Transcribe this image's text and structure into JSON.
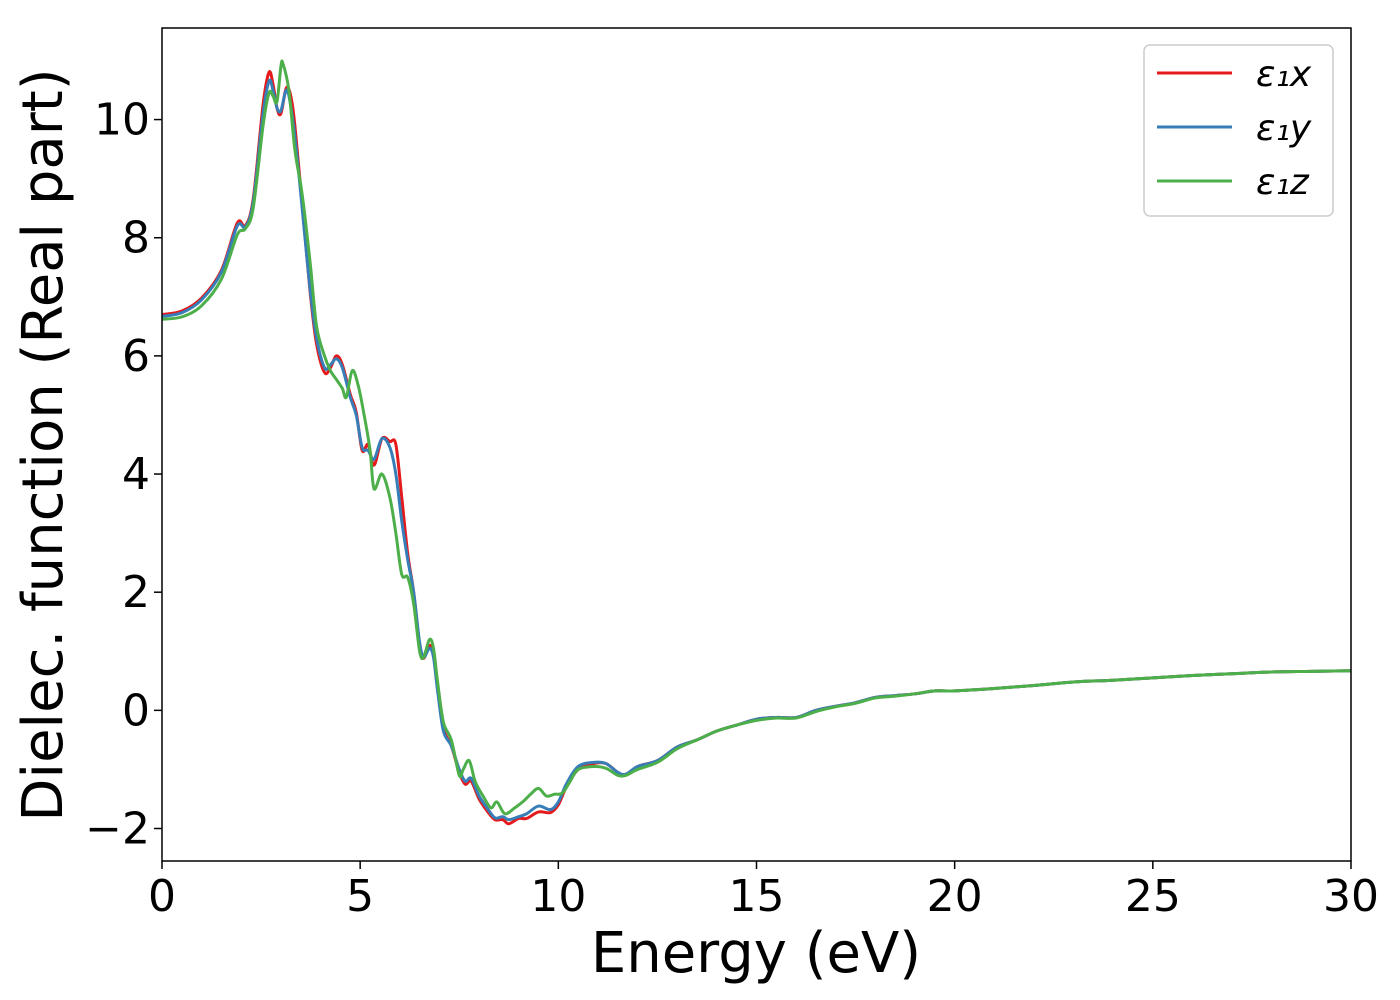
{
  "chart_data": {
    "type": "line",
    "title": "",
    "xlabel": "Energy (eV)",
    "ylabel": "Dielec. function (Real part)",
    "xlim": [
      0,
      30
    ],
    "ylim": [
      -2.55,
      11.55
    ],
    "xticks": [
      0,
      5,
      10,
      15,
      20,
      25,
      30
    ],
    "yticks": [
      -2,
      0,
      2,
      4,
      6,
      8,
      10
    ],
    "xtick_labels": [
      "0",
      "5",
      "10",
      "15",
      "20",
      "25",
      "30"
    ],
    "ytick_labels": [
      "−2",
      "0",
      "2",
      "4",
      "6",
      "8",
      "10"
    ],
    "grid": false,
    "legend_position": "top-right",
    "series": [
      {
        "name": "ε₁x",
        "color": "#e41a1c",
        "points": [
          [
            0,
            6.7
          ],
          [
            0.5,
            6.76
          ],
          [
            1.0,
            6.98
          ],
          [
            1.5,
            7.45
          ],
          [
            1.9,
            8.25
          ],
          [
            2.1,
            8.2
          ],
          [
            2.3,
            8.65
          ],
          [
            2.55,
            10.25
          ],
          [
            2.7,
            10.8
          ],
          [
            2.8,
            10.6
          ],
          [
            2.9,
            10.2
          ],
          [
            3.0,
            10.1
          ],
          [
            3.15,
            10.55
          ],
          [
            3.3,
            10.2
          ],
          [
            3.45,
            9.2
          ],
          [
            3.6,
            8.1
          ],
          [
            3.75,
            7.0
          ],
          [
            3.9,
            6.2
          ],
          [
            4.1,
            5.72
          ],
          [
            4.25,
            5.8
          ],
          [
            4.4,
            6.0
          ],
          [
            4.55,
            5.85
          ],
          [
            4.75,
            5.35
          ],
          [
            4.9,
            5.05
          ],
          [
            5.05,
            4.4
          ],
          [
            5.2,
            4.5
          ],
          [
            5.35,
            4.15
          ],
          [
            5.55,
            4.6
          ],
          [
            5.75,
            4.55
          ],
          [
            5.9,
            4.5
          ],
          [
            6.05,
            3.6
          ],
          [
            6.2,
            2.65
          ],
          [
            6.35,
            2.0
          ],
          [
            6.5,
            1.1
          ],
          [
            6.6,
            0.88
          ],
          [
            6.75,
            1.1
          ],
          [
            6.85,
            0.95
          ],
          [
            6.95,
            0.4
          ],
          [
            7.1,
            -0.3
          ],
          [
            7.3,
            -0.6
          ],
          [
            7.5,
            -1.05
          ],
          [
            7.65,
            -1.25
          ],
          [
            7.8,
            -1.2
          ],
          [
            8.0,
            -1.5
          ],
          [
            8.2,
            -1.7
          ],
          [
            8.4,
            -1.85
          ],
          [
            8.6,
            -1.85
          ],
          [
            8.75,
            -1.92
          ],
          [
            9.0,
            -1.83
          ],
          [
            9.2,
            -1.83
          ],
          [
            9.5,
            -1.72
          ],
          [
            9.8,
            -1.73
          ],
          [
            10.0,
            -1.6
          ],
          [
            10.2,
            -1.3
          ],
          [
            10.5,
            -1.0
          ],
          [
            10.9,
            -0.9
          ],
          [
            11.2,
            -0.9
          ],
          [
            11.5,
            -1.05
          ],
          [
            11.7,
            -1.1
          ],
          [
            12.0,
            -0.95
          ],
          [
            12.5,
            -0.85
          ],
          [
            13.0,
            -0.62
          ],
          [
            13.5,
            -0.5
          ],
          [
            14.0,
            -0.35
          ],
          [
            14.5,
            -0.25
          ],
          [
            15.0,
            -0.15
          ],
          [
            15.5,
            -0.12
          ],
          [
            16.0,
            -0.12
          ],
          [
            16.5,
            0.0
          ],
          [
            17.0,
            0.07
          ],
          [
            17.5,
            0.13
          ],
          [
            18.0,
            0.22
          ],
          [
            18.5,
            0.25
          ],
          [
            19.0,
            0.28
          ],
          [
            19.5,
            0.33
          ],
          [
            20.0,
            0.33
          ],
          [
            21.0,
            0.37
          ],
          [
            22.0,
            0.42
          ],
          [
            23.0,
            0.48
          ],
          [
            24.0,
            0.51
          ],
          [
            25.0,
            0.55
          ],
          [
            26.0,
            0.59
          ],
          [
            27.0,
            0.62
          ],
          [
            28.0,
            0.65
          ],
          [
            29.0,
            0.66
          ],
          [
            30.0,
            0.67
          ]
        ]
      },
      {
        "name": "ε₁y",
        "color": "#377eb8",
        "points": [
          [
            0,
            6.67
          ],
          [
            0.5,
            6.73
          ],
          [
            1.0,
            6.95
          ],
          [
            1.5,
            7.42
          ],
          [
            1.9,
            8.2
          ],
          [
            2.1,
            8.18
          ],
          [
            2.3,
            8.6
          ],
          [
            2.55,
            10.1
          ],
          [
            2.7,
            10.65
          ],
          [
            2.8,
            10.5
          ],
          [
            2.9,
            10.2
          ],
          [
            3.0,
            10.15
          ],
          [
            3.15,
            10.5
          ],
          [
            3.3,
            10.0
          ],
          [
            3.45,
            9.1
          ],
          [
            3.6,
            8.05
          ],
          [
            3.75,
            7.05
          ],
          [
            3.9,
            6.3
          ],
          [
            4.1,
            5.8
          ],
          [
            4.25,
            5.85
          ],
          [
            4.4,
            5.95
          ],
          [
            4.55,
            5.8
          ],
          [
            4.75,
            5.3
          ],
          [
            4.9,
            5.0
          ],
          [
            5.05,
            4.45
          ],
          [
            5.2,
            4.4
          ],
          [
            5.35,
            4.25
          ],
          [
            5.55,
            4.6
          ],
          [
            5.75,
            4.45
          ],
          [
            5.9,
            4.0
          ],
          [
            6.05,
            3.2
          ],
          [
            6.2,
            2.55
          ],
          [
            6.35,
            2.0
          ],
          [
            6.5,
            1.15
          ],
          [
            6.6,
            0.9
          ],
          [
            6.75,
            1.05
          ],
          [
            6.85,
            0.9
          ],
          [
            6.95,
            0.35
          ],
          [
            7.1,
            -0.35
          ],
          [
            7.3,
            -0.6
          ],
          [
            7.5,
            -1.0
          ],
          [
            7.65,
            -1.2
          ],
          [
            7.8,
            -1.15
          ],
          [
            8.0,
            -1.45
          ],
          [
            8.2,
            -1.65
          ],
          [
            8.4,
            -1.82
          ],
          [
            8.6,
            -1.8
          ],
          [
            8.75,
            -1.85
          ],
          [
            9.0,
            -1.8
          ],
          [
            9.2,
            -1.75
          ],
          [
            9.5,
            -1.62
          ],
          [
            9.8,
            -1.68
          ],
          [
            10.0,
            -1.55
          ],
          [
            10.2,
            -1.25
          ],
          [
            10.5,
            -0.95
          ],
          [
            10.9,
            -0.88
          ],
          [
            11.2,
            -0.9
          ],
          [
            11.5,
            -1.05
          ],
          [
            11.7,
            -1.08
          ],
          [
            12.0,
            -0.95
          ],
          [
            12.5,
            -0.85
          ],
          [
            13.0,
            -0.62
          ],
          [
            13.5,
            -0.5
          ],
          [
            14.0,
            -0.35
          ],
          [
            14.5,
            -0.25
          ],
          [
            15.0,
            -0.15
          ],
          [
            15.5,
            -0.12
          ],
          [
            16.0,
            -0.12
          ],
          [
            16.5,
            0.0
          ],
          [
            17.0,
            0.07
          ],
          [
            17.5,
            0.13
          ],
          [
            18.0,
            0.22
          ],
          [
            18.5,
            0.25
          ],
          [
            19.0,
            0.28
          ],
          [
            19.5,
            0.33
          ],
          [
            20.0,
            0.33
          ],
          [
            21.0,
            0.37
          ],
          [
            22.0,
            0.42
          ],
          [
            23.0,
            0.48
          ],
          [
            24.0,
            0.51
          ],
          [
            25.0,
            0.55
          ],
          [
            26.0,
            0.59
          ],
          [
            27.0,
            0.62
          ],
          [
            28.0,
            0.65
          ],
          [
            29.0,
            0.66
          ],
          [
            30.0,
            0.67
          ]
        ]
      },
      {
        "name": "ε₁z",
        "color": "#4daf4a",
        "points": [
          [
            0,
            6.62
          ],
          [
            0.5,
            6.66
          ],
          [
            1.0,
            6.85
          ],
          [
            1.5,
            7.3
          ],
          [
            1.9,
            8.05
          ],
          [
            2.1,
            8.15
          ],
          [
            2.3,
            8.5
          ],
          [
            2.55,
            9.9
          ],
          [
            2.7,
            10.45
          ],
          [
            2.8,
            10.4
          ],
          [
            2.9,
            10.3
          ],
          [
            3.0,
            10.9
          ],
          [
            3.05,
            10.95
          ],
          [
            3.2,
            10.5
          ],
          [
            3.35,
            9.5
          ],
          [
            3.5,
            8.9
          ],
          [
            3.6,
            8.4
          ],
          [
            3.75,
            7.5
          ],
          [
            3.9,
            6.5
          ],
          [
            4.1,
            6.0
          ],
          [
            4.25,
            5.75
          ],
          [
            4.4,
            5.6
          ],
          [
            4.55,
            5.45
          ],
          [
            4.65,
            5.3
          ],
          [
            4.8,
            5.75
          ],
          [
            4.95,
            5.5
          ],
          [
            5.1,
            5.0
          ],
          [
            5.25,
            4.4
          ],
          [
            5.35,
            3.75
          ],
          [
            5.55,
            4.0
          ],
          [
            5.75,
            3.6
          ],
          [
            5.9,
            3.0
          ],
          [
            6.05,
            2.3
          ],
          [
            6.2,
            2.25
          ],
          [
            6.35,
            1.8
          ],
          [
            6.5,
            1.0
          ],
          [
            6.6,
            0.9
          ],
          [
            6.75,
            1.2
          ],
          [
            6.85,
            1.05
          ],
          [
            6.95,
            0.5
          ],
          [
            7.1,
            -0.2
          ],
          [
            7.3,
            -0.5
          ],
          [
            7.5,
            -1.1
          ],
          [
            7.6,
            -1.0
          ],
          [
            7.75,
            -0.85
          ],
          [
            7.9,
            -1.2
          ],
          [
            8.1,
            -1.45
          ],
          [
            8.3,
            -1.65
          ],
          [
            8.45,
            -1.55
          ],
          [
            8.65,
            -1.75
          ],
          [
            8.9,
            -1.65
          ],
          [
            9.1,
            -1.55
          ],
          [
            9.3,
            -1.42
          ],
          [
            9.5,
            -1.32
          ],
          [
            9.7,
            -1.45
          ],
          [
            9.9,
            -1.42
          ],
          [
            10.1,
            -1.4
          ],
          [
            10.3,
            -1.2
          ],
          [
            10.5,
            -1.0
          ],
          [
            10.9,
            -0.95
          ],
          [
            11.2,
            -0.98
          ],
          [
            11.5,
            -1.1
          ],
          [
            11.7,
            -1.1
          ],
          [
            12.0,
            -1.0
          ],
          [
            12.5,
            -0.88
          ],
          [
            13.0,
            -0.65
          ],
          [
            13.5,
            -0.5
          ],
          [
            14.0,
            -0.35
          ],
          [
            14.5,
            -0.25
          ],
          [
            15.0,
            -0.17
          ],
          [
            15.5,
            -0.13
          ],
          [
            16.0,
            -0.13
          ],
          [
            16.5,
            -0.02
          ],
          [
            17.0,
            0.06
          ],
          [
            17.5,
            0.12
          ],
          [
            18.0,
            0.21
          ],
          [
            18.5,
            0.24
          ],
          [
            19.0,
            0.28
          ],
          [
            19.5,
            0.33
          ],
          [
            20.0,
            0.33
          ],
          [
            21.0,
            0.37
          ],
          [
            22.0,
            0.42
          ],
          [
            23.0,
            0.48
          ],
          [
            24.0,
            0.51
          ],
          [
            25.0,
            0.55
          ],
          [
            26.0,
            0.59
          ],
          [
            27.0,
            0.62
          ],
          [
            28.0,
            0.65
          ],
          [
            29.0,
            0.66
          ],
          [
            30.0,
            0.67
          ]
        ]
      }
    ]
  }
}
